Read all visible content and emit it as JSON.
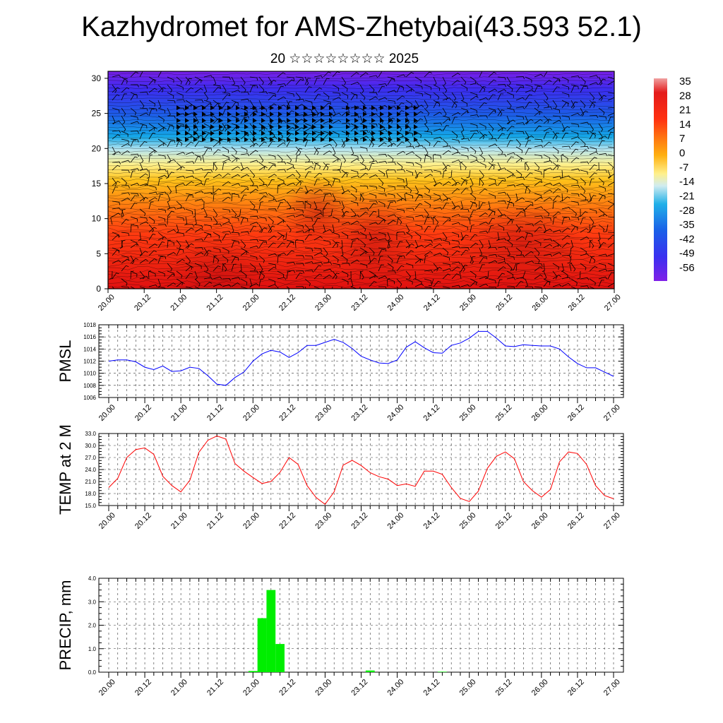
{
  "title": "Kazhydromet for AMS-Zhetybai(43.593 52.1)",
  "subtitle": "20 ☆☆☆☆☆☆☆☆ 2025",
  "time_labels": [
    "20.00",
    "20.12",
    "21.00",
    "21.12",
    "22.00",
    "22.12",
    "23.00",
    "23.12",
    "24.00",
    "24.12",
    "25.00",
    "25.12",
    "26.00",
    "26.12",
    "27.00"
  ],
  "chart_data": [
    {
      "type": "heatmap",
      "description_fields": "vertical cross-section of temperature with wind barbs",
      "y_range": [
        0,
        31
      ],
      "y_ticks": [
        0,
        5,
        10,
        15,
        20,
        25,
        30
      ],
      "colorbar": {
        "labels": [
          "35",
          "28",
          "21",
          "14",
          "7",
          "0",
          "-7",
          "-14",
          "-21",
          "-28",
          "-35",
          "-42",
          "-49",
          "-56"
        ],
        "range": [
          -60,
          38
        ]
      },
      "temperature_profile": [
        {
          "level": 0,
          "value": 32
        },
        {
          "level": 5,
          "value": 26
        },
        {
          "level": 10,
          "value": 14
        },
        {
          "level": 15,
          "value": 2
        },
        {
          "level": 17,
          "value": -7
        },
        {
          "level": 20,
          "value": -28
        },
        {
          "level": 23,
          "value": -45
        },
        {
          "level": 26,
          "value": -56
        },
        {
          "level": 31,
          "value": -58
        }
      ]
    },
    {
      "type": "line",
      "ylabel": "PMSL",
      "ylim": [
        1006,
        1018
      ],
      "y_ticks": [
        1006,
        1008,
        1010,
        1012,
        1014,
        1016,
        1018
      ],
      "color": "#0000ff",
      "x": [
        0,
        1,
        2,
        3,
        4,
        5,
        6,
        7,
        8,
        9,
        10,
        11,
        12,
        13,
        14,
        15,
        16,
        17,
        18,
        19,
        20,
        21,
        22,
        23,
        24,
        25,
        26,
        27,
        28,
        29,
        30,
        31,
        32,
        33,
        34,
        35,
        36,
        37,
        38,
        39,
        40,
        41,
        42,
        43,
        44,
        45,
        46,
        47,
        48,
        49,
        50,
        51,
        52,
        53,
        54,
        55,
        56
      ],
      "values": [
        1012.0,
        1012.2,
        1012.2,
        1011.9,
        1011.0,
        1010.6,
        1011.2,
        1010.3,
        1010.4,
        1011.0,
        1010.8,
        1009.6,
        1008.2,
        1008.0,
        1009.3,
        1010.2,
        1012.0,
        1013.2,
        1013.8,
        1013.5,
        1012.6,
        1013.4,
        1014.6,
        1014.6,
        1015.1,
        1015.6,
        1015.1,
        1014.1,
        1012.8,
        1012.2,
        1011.7,
        1011.6,
        1012.2,
        1014.3,
        1015.2,
        1014.2,
        1013.4,
        1013.3,
        1014.6,
        1015.0,
        1015.8,
        1016.9,
        1016.9,
        1015.8,
        1014.5,
        1014.4,
        1014.7,
        1014.6,
        1014.5,
        1014.5,
        1014.0,
        1012.7,
        1011.6,
        1010.9,
        1010.9,
        1010.2,
        1009.5
      ]
    },
    {
      "type": "line",
      "ylabel": "TEMP at 2 M",
      "ylim": [
        15,
        33
      ],
      "y_tick_labels": [
        "15.0",
        "18.0",
        "21.0",
        "24.0",
        "27.0",
        "30.0",
        "33.0"
      ],
      "color": "#ff0000",
      "x": [
        0,
        1,
        2,
        3,
        4,
        5,
        6,
        7,
        8,
        9,
        10,
        11,
        12,
        13,
        14,
        15,
        16,
        17,
        18,
        19,
        20,
        21,
        22,
        23,
        24,
        25,
        26,
        27,
        28,
        29,
        30,
        31,
        32,
        33,
        34,
        35,
        36,
        37,
        38,
        39,
        40,
        41,
        42,
        43,
        44,
        45,
        46,
        47,
        48,
        49,
        50,
        51,
        52,
        53,
        54,
        55,
        56
      ],
      "values": [
        19.5,
        21.8,
        27.0,
        29.0,
        29.4,
        27.8,
        22.3,
        20.0,
        18.4,
        21.3,
        28.3,
        31.3,
        32.4,
        31.6,
        25.5,
        23.6,
        22.0,
        20.5,
        21.0,
        23.3,
        27.0,
        25.3,
        20.0,
        17.0,
        15.3,
        18.4,
        25.1,
        26.3,
        25.0,
        23.2,
        22.2,
        21.6,
        20.0,
        20.4,
        19.8,
        23.6,
        23.6,
        22.8,
        19.5,
        16.8,
        16.0,
        18.6,
        24.3,
        27.3,
        28.4,
        26.7,
        21.0,
        18.7,
        17.1,
        19.0,
        25.9,
        28.4,
        28.0,
        25.3,
        20.0,
        17.5,
        16.7
      ]
    },
    {
      "type": "bar",
      "ylabel": "PRECIP, mm",
      "ylim": [
        0,
        4
      ],
      "y_tick_labels": [
        "0.0",
        "1.0",
        "2.0",
        "3.0",
        "4.0"
      ],
      "color": "#00ee00",
      "x": [
        16,
        17,
        18,
        19,
        29,
        37
      ],
      "values": [
        0.05,
        2.3,
        3.5,
        1.2,
        0.07,
        0.02
      ]
    }
  ]
}
